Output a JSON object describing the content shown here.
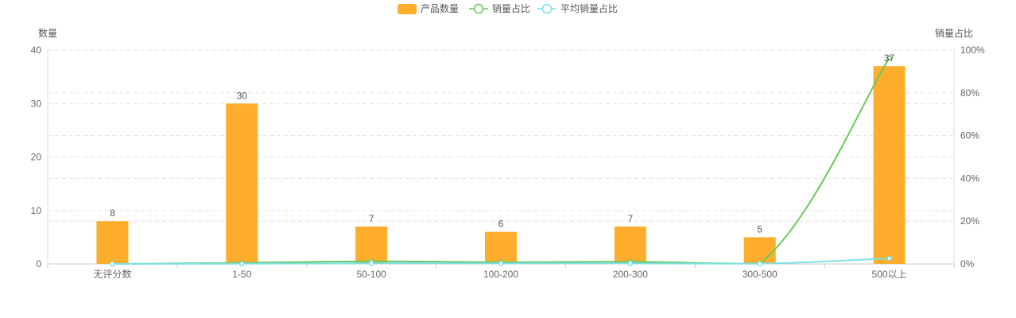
{
  "chart_data": {
    "type": "bar",
    "categories": [
      "无评分数",
      "1-50",
      "50-100",
      "100-200",
      "200-300",
      "300-500",
      "500以上"
    ],
    "series": [
      {
        "name": "产品数量",
        "type": "bar",
        "axis": "left",
        "values": [
          8,
          30,
          7,
          6,
          7,
          5,
          37
        ]
      },
      {
        "name": "销量占比",
        "type": "line",
        "axis": "right",
        "values": [
          0,
          0.5,
          1.2,
          0.8,
          1.0,
          0.2,
          96.3
        ]
      },
      {
        "name": "平均销量占比",
        "type": "line",
        "axis": "right",
        "values": [
          0,
          0.1,
          0.3,
          0.3,
          0.3,
          0.1,
          2.6
        ]
      }
    ],
    "ylabel": "数量",
    "y2label": "销量占比",
    "ylim": [
      0,
      40
    ],
    "y2lim": [
      0,
      100
    ],
    "yticks": [
      "0",
      "10",
      "20",
      "30",
      "40"
    ],
    "y2ticks": [
      "0%",
      "20%",
      "40%",
      "60%",
      "80%",
      "100%"
    ],
    "grid": true,
    "legend_position": "top-center",
    "colors": {
      "bar": "#ffad2d",
      "line1": "#6ac85a",
      "line2": "#7ee0e6"
    }
  }
}
